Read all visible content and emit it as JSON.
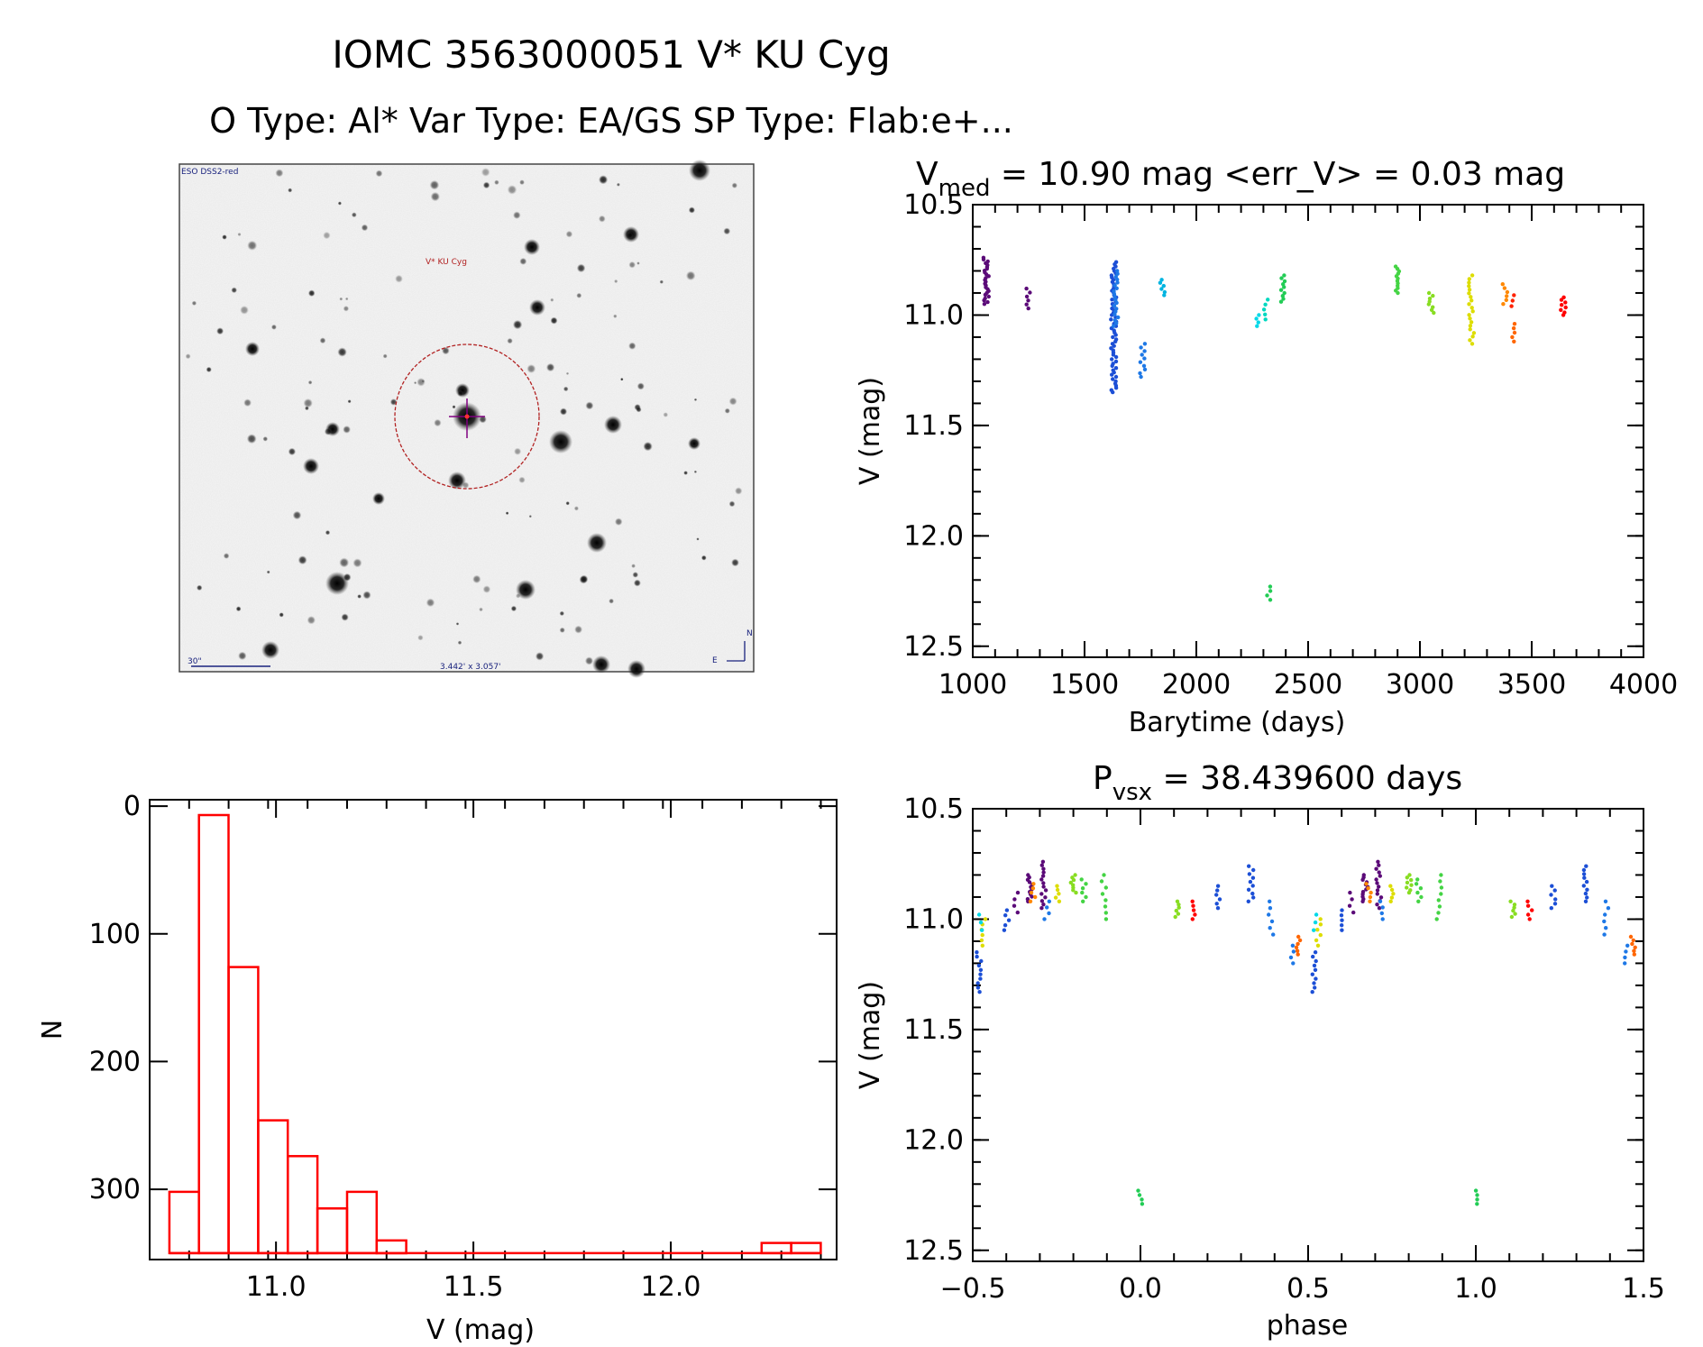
{
  "title": {
    "line1": "IOMC 3563000051   V* KU Cyg",
    "line2": "O Type: Al*  Var Type: EA/GS  SP Type: Flab:e+..."
  },
  "finder": {
    "survey_label": "ESO DSS2-red",
    "target_label": "V* KU Cyg",
    "scale_label": "30\"",
    "fov_label": "3.442' x 3.057'",
    "north_label": "N",
    "east_label": "E"
  },
  "colors": {
    "hist_bar": "#ff0000",
    "circle": "#b22222",
    "crosshair": "#800080"
  },
  "chart_data": [
    {
      "id": "lightcurve",
      "type": "scatter",
      "title_main": "V",
      "title_sub": "med",
      "title_rest": " = 10.90 mag <err_V> = 0.03 mag",
      "xlabel": "Barytime (days)",
      "ylabel": "V (mag)",
      "xlim": [
        1000,
        4000
      ],
      "ylim": [
        12.55,
        10.5
      ],
      "xticks": [
        "1000",
        "1500",
        "2000",
        "2500",
        "3000",
        "3500",
        "4000"
      ],
      "yticks": [
        "10.5",
        "11.0",
        "11.5",
        "12.0",
        "12.5"
      ],
      "groups": [
        {
          "x": 1060,
          "v_min": 10.74,
          "v_max": 10.95,
          "n": 26,
          "color": "#5b0a78"
        },
        {
          "x": 1250,
          "v_min": 10.88,
          "v_max": 10.97,
          "n": 6,
          "color": "#5b0a78"
        },
        {
          "x": 1630,
          "v_min": 10.76,
          "v_max": 11.35,
          "n": 60,
          "color": "#1c4fd6"
        },
        {
          "x": 1640,
          "v_min": 10.8,
          "v_max": 11.05,
          "n": 20,
          "color": "#1e78e6"
        },
        {
          "x": 1760,
          "v_min": 11.13,
          "v_max": 11.28,
          "n": 10,
          "color": "#1e78e6"
        },
        {
          "x": 1850,
          "v_min": 10.84,
          "v_max": 10.91,
          "n": 6,
          "color": "#00b4e0"
        },
        {
          "x": 2270,
          "v_min": 11.0,
          "v_max": 11.05,
          "n": 4,
          "color": "#00d8e8"
        },
        {
          "x": 2310,
          "v_min": 10.93,
          "v_max": 11.02,
          "n": 5,
          "color": "#00d8c0"
        },
        {
          "x": 2390,
          "v_min": 10.82,
          "v_max": 10.94,
          "n": 10,
          "color": "#22cc55"
        },
        {
          "x": 2320,
          "v_min": 12.23,
          "v_max": 12.29,
          "n": 4,
          "color": "#22cc55"
        },
        {
          "x": 2900,
          "v_min": 10.78,
          "v_max": 10.9,
          "n": 12,
          "color": "#44d444"
        },
        {
          "x": 3050,
          "v_min": 10.9,
          "v_max": 10.99,
          "n": 8,
          "color": "#88dd22"
        },
        {
          "x": 3230,
          "v_min": 10.82,
          "v_max": 11.13,
          "n": 20,
          "color": "#dddd00"
        },
        {
          "x": 3380,
          "v_min": 10.86,
          "v_max": 10.95,
          "n": 6,
          "color": "#ff8800"
        },
        {
          "x": 3420,
          "v_min": 11.04,
          "v_max": 11.12,
          "n": 5,
          "color": "#ff6600"
        },
        {
          "x": 3415,
          "v_min": 10.91,
          "v_max": 10.96,
          "n": 3,
          "color": "#ff2200"
        },
        {
          "x": 3640,
          "v_min": 10.92,
          "v_max": 11.0,
          "n": 8,
          "color": "#ff0000"
        }
      ]
    },
    {
      "id": "phased",
      "type": "scatter",
      "title_main": "P",
      "title_sub": "vsx",
      "title_rest": " = 38.439600 days",
      "xlabel": "phase",
      "ylabel": "V (mag)",
      "xlim": [
        -0.5,
        1.5
      ],
      "ylim": [
        12.55,
        10.5
      ],
      "xticks": [
        "−0.5",
        "0.0",
        "0.5",
        "1.0",
        "1.5"
      ],
      "yticks": [
        "10.5",
        "11.0",
        "11.5",
        "12.0",
        "12.5"
      ],
      "groups": [
        {
          "x": -0.48,
          "v_min": 11.15,
          "v_max": 11.33,
          "n": 10,
          "color": "#1c4fd6"
        },
        {
          "x": -0.47,
          "v_min": 11.0,
          "v_max": 11.12,
          "n": 6,
          "color": "#dddd00"
        },
        {
          "x": -0.48,
          "v_min": 10.98,
          "v_max": 11.05,
          "n": 3,
          "color": "#00d8e8"
        },
        {
          "x": -0.4,
          "v_min": 10.96,
          "v_max": 11.05,
          "n": 5,
          "color": "#1c4fd6"
        },
        {
          "x": -0.37,
          "v_min": 10.88,
          "v_max": 10.97,
          "n": 4,
          "color": "#5b0a78"
        },
        {
          "x": -0.33,
          "v_min": 10.8,
          "v_max": 10.92,
          "n": 12,
          "color": "#5b0a78"
        },
        {
          "x": -0.29,
          "v_min": 10.74,
          "v_max": 10.95,
          "n": 14,
          "color": "#5b0a78"
        },
        {
          "x": -0.32,
          "v_min": 10.84,
          "v_max": 10.92,
          "n": 5,
          "color": "#ff8800"
        },
        {
          "x": -0.28,
          "v_min": 10.92,
          "v_max": 11.0,
          "n": 4,
          "color": "#1e78e6"
        },
        {
          "x": -0.25,
          "v_min": 10.85,
          "v_max": 10.92,
          "n": 5,
          "color": "#dddd00"
        },
        {
          "x": -0.2,
          "v_min": 10.8,
          "v_max": 10.88,
          "n": 8,
          "color": "#88dd22"
        },
        {
          "x": -0.17,
          "v_min": 10.82,
          "v_max": 10.92,
          "n": 6,
          "color": "#44d444"
        },
        {
          "x": -0.11,
          "v_min": 10.8,
          "v_max": 11.0,
          "n": 8,
          "color": "#44d444"
        },
        {
          "x": 0.0,
          "v_min": 12.23,
          "v_max": 12.29,
          "n": 4,
          "color": "#22cc55"
        },
        {
          "x": 0.11,
          "v_min": 10.92,
          "v_max": 10.99,
          "n": 6,
          "color": "#88dd22"
        },
        {
          "x": 0.16,
          "v_min": 10.92,
          "v_max": 11.0,
          "n": 5,
          "color": "#ff0000"
        },
        {
          "x": 0.23,
          "v_min": 10.85,
          "v_max": 10.95,
          "n": 6,
          "color": "#1c4fd6"
        },
        {
          "x": 0.33,
          "v_min": 10.76,
          "v_max": 10.92,
          "n": 10,
          "color": "#1c4fd6"
        },
        {
          "x": 0.39,
          "v_min": 10.92,
          "v_max": 11.07,
          "n": 6,
          "color": "#1e78e6"
        },
        {
          "x": 0.45,
          "v_min": 11.12,
          "v_max": 11.2,
          "n": 4,
          "color": "#1e78e6"
        },
        {
          "x": 0.47,
          "v_min": 11.08,
          "v_max": 11.16,
          "n": 6,
          "color": "#ff6600"
        },
        {
          "x": 0.52,
          "v_min": 11.15,
          "v_max": 11.33,
          "n": 10,
          "color": "#1c4fd6"
        },
        {
          "x": 0.53,
          "v_min": 11.0,
          "v_max": 11.12,
          "n": 6,
          "color": "#dddd00"
        },
        {
          "x": 0.52,
          "v_min": 10.98,
          "v_max": 11.05,
          "n": 3,
          "color": "#00d8e8"
        },
        {
          "x": 0.6,
          "v_min": 10.96,
          "v_max": 11.05,
          "n": 5,
          "color": "#1c4fd6"
        },
        {
          "x": 0.63,
          "v_min": 10.88,
          "v_max": 10.97,
          "n": 4,
          "color": "#5b0a78"
        },
        {
          "x": 0.67,
          "v_min": 10.8,
          "v_max": 10.92,
          "n": 12,
          "color": "#5b0a78"
        },
        {
          "x": 0.71,
          "v_min": 10.74,
          "v_max": 10.95,
          "n": 14,
          "color": "#5b0a78"
        },
        {
          "x": 0.68,
          "v_min": 10.84,
          "v_max": 10.92,
          "n": 5,
          "color": "#ff8800"
        },
        {
          "x": 0.72,
          "v_min": 10.92,
          "v_max": 11.0,
          "n": 4,
          "color": "#1e78e6"
        },
        {
          "x": 0.75,
          "v_min": 10.85,
          "v_max": 10.92,
          "n": 5,
          "color": "#dddd00"
        },
        {
          "x": 0.8,
          "v_min": 10.8,
          "v_max": 10.88,
          "n": 8,
          "color": "#88dd22"
        },
        {
          "x": 0.83,
          "v_min": 10.82,
          "v_max": 10.92,
          "n": 6,
          "color": "#44d444"
        },
        {
          "x": 0.89,
          "v_min": 10.8,
          "v_max": 11.0,
          "n": 8,
          "color": "#44d444"
        },
        {
          "x": 1.0,
          "v_min": 12.23,
          "v_max": 12.29,
          "n": 4,
          "color": "#22cc55"
        },
        {
          "x": 1.11,
          "v_min": 10.92,
          "v_max": 10.99,
          "n": 6,
          "color": "#88dd22"
        },
        {
          "x": 1.16,
          "v_min": 10.92,
          "v_max": 11.0,
          "n": 5,
          "color": "#ff0000"
        },
        {
          "x": 1.23,
          "v_min": 10.85,
          "v_max": 10.95,
          "n": 6,
          "color": "#1c4fd6"
        },
        {
          "x": 1.33,
          "v_min": 10.76,
          "v_max": 10.92,
          "n": 10,
          "color": "#1c4fd6"
        },
        {
          "x": 1.39,
          "v_min": 10.92,
          "v_max": 11.07,
          "n": 6,
          "color": "#1e78e6"
        },
        {
          "x": 1.45,
          "v_min": 11.12,
          "v_max": 11.2,
          "n": 4,
          "color": "#1e78e6"
        },
        {
          "x": 1.47,
          "v_min": 11.08,
          "v_max": 11.16,
          "n": 6,
          "color": "#ff6600"
        }
      ]
    },
    {
      "id": "histogram",
      "type": "bar",
      "xlabel": "V (mag)",
      "ylabel": "N",
      "xlim": [
        10.68,
        12.42
      ],
      "ylim": [
        -5,
        355
      ],
      "xticks": [
        "11.0",
        "11.5",
        "12.0"
      ],
      "yticks": [
        "0",
        "100",
        "200",
        "300"
      ],
      "bin_width": 0.075,
      "bins": [
        {
          "left": 10.73,
          "count": 48
        },
        {
          "left": 10.805,
          "count": 343
        },
        {
          "left": 10.88,
          "count": 224
        },
        {
          "left": 10.955,
          "count": 104
        },
        {
          "left": 11.03,
          "count": 76
        },
        {
          "left": 11.105,
          "count": 35
        },
        {
          "left": 11.18,
          "count": 48
        },
        {
          "left": 11.255,
          "count": 10
        },
        {
          "left": 11.33,
          "count": 0
        },
        {
          "left": 11.405,
          "count": 0
        },
        {
          "left": 11.48,
          "count": 0
        },
        {
          "left": 11.555,
          "count": 0
        },
        {
          "left": 11.63,
          "count": 0
        },
        {
          "left": 11.705,
          "count": 0
        },
        {
          "left": 11.78,
          "count": 0
        },
        {
          "left": 11.855,
          "count": 0
        },
        {
          "left": 11.93,
          "count": 0
        },
        {
          "left": 12.005,
          "count": 0
        },
        {
          "left": 12.08,
          "count": 0
        },
        {
          "left": 12.155,
          "count": 0
        },
        {
          "left": 12.23,
          "count": 8
        },
        {
          "left": 12.305,
          "count": 8
        }
      ]
    }
  ]
}
